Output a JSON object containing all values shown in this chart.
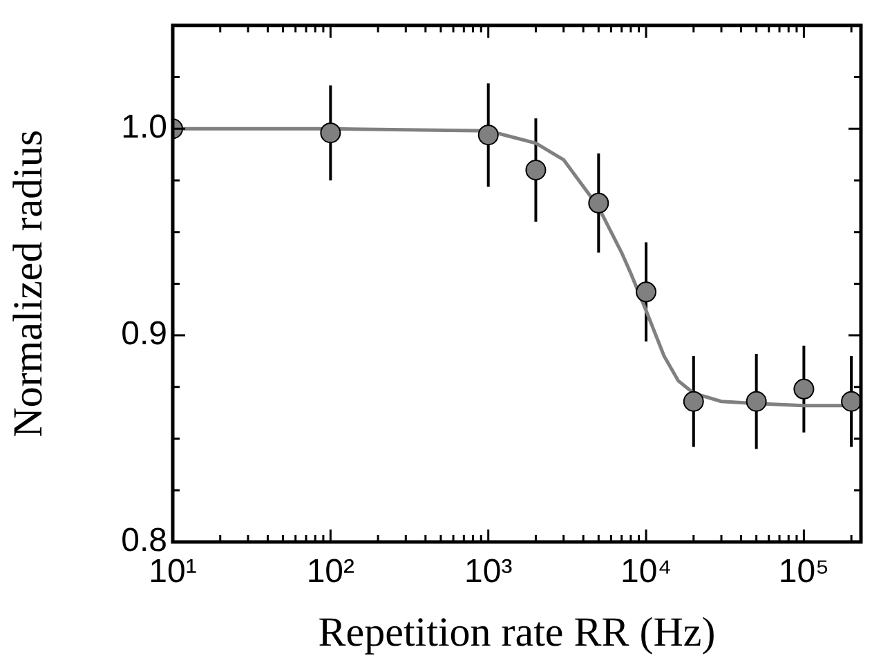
{
  "chart_data": {
    "type": "scatter",
    "xlabel": "Repetition rate RR (Hz)",
    "ylabel": "Normalized radius",
    "log": "x",
    "xlim": [
      10,
      230000
    ],
    "ylim": [
      0.8,
      1.05
    ],
    "xticks": [
      {
        "value": 10,
        "label": "10¹"
      },
      {
        "value": 100,
        "label": "10²"
      },
      {
        "value": 1000,
        "label": "10³"
      },
      {
        "value": 10000,
        "label": "10⁴"
      },
      {
        "value": 100000,
        "label": "10⁵"
      }
    ],
    "yticks": [
      0.8,
      0.9,
      {
        "value": 1,
        "label": "1.0"
      }
    ],
    "grid": false,
    "legend": false,
    "marker": "circle",
    "series": [
      {
        "type": "line",
        "color": "#808080",
        "marker": "none",
        "line_style": "solid",
        "x": [
          10,
          100,
          1000,
          2000,
          3000,
          5000,
          7000,
          8000,
          10000,
          13000,
          16000,
          20000,
          30000,
          50000,
          100000,
          230000
        ],
        "values": [
          1.0,
          1.0,
          0.999,
          0.993,
          0.985,
          0.962,
          0.94,
          0.93,
          0.912,
          0.89,
          0.878,
          0.872,
          0.868,
          0.867,
          0.866,
          0.866
        ]
      },
      {
        "color": "#808080",
        "x": [
          10,
          100,
          1000,
          2000,
          5000,
          10000,
          20000,
          50000,
          100000,
          200000
        ],
        "values": [
          1.0,
          0.998,
          0.997,
          0.98,
          0.964,
          0.921,
          0.868,
          0.868,
          0.874,
          0.868
        ],
        "errors": [
          null,
          0.023,
          0.025,
          0.025,
          0.024,
          0.024,
          0.022,
          0.023,
          0.021,
          0.022
        ]
      }
    ]
  }
}
